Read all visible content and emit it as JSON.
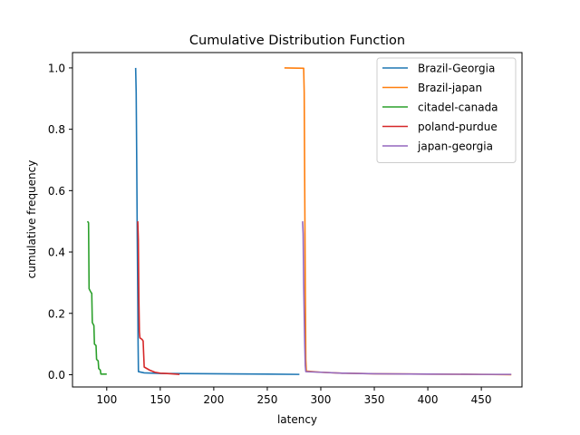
{
  "chart_data": {
    "type": "line",
    "title": "Cumulative Distribution Function",
    "xlabel": "latency",
    "ylabel": "cumulative frequency",
    "xlim": [
      68,
      488
    ],
    "ylim": [
      -0.04,
      1.05
    ],
    "xticks": [
      100,
      150,
      200,
      250,
      300,
      350,
      400,
      450
    ],
    "xtick_labels": [
      "100",
      "150",
      "200",
      "250",
      "300",
      "350",
      "400",
      "450"
    ],
    "yticks": [
      0.0,
      0.2,
      0.4,
      0.6,
      0.8,
      1.0
    ],
    "ytick_labels": [
      "0.0",
      "0.2",
      "0.4",
      "0.6",
      "0.8",
      "1.0"
    ],
    "grid": false,
    "legend_position": "top-right",
    "series": [
      {
        "name": "Brazil-Georgia",
        "color": "#1f77b4",
        "points": [
          [
            127,
            1.0
          ],
          [
            127.5,
            0.92
          ],
          [
            128,
            0.7
          ],
          [
            128.5,
            0.45
          ],
          [
            129,
            0.25
          ],
          [
            129.3,
            0.1
          ],
          [
            129.6,
            0.01
          ],
          [
            135,
            0.006
          ],
          [
            150,
            0.004
          ],
          [
            200,
            0.003
          ],
          [
            250,
            0.002
          ],
          [
            280,
            0.001
          ]
        ]
      },
      {
        "name": "Brazil-japan",
        "color": "#ff7f0e",
        "points": [
          [
            266,
            1.0
          ],
          [
            284,
            0.999
          ],
          [
            284.5,
            0.92
          ],
          [
            285,
            0.6
          ],
          [
            285.5,
            0.3
          ],
          [
            286,
            0.05
          ],
          [
            286.5,
            0.012
          ],
          [
            300,
            0.008
          ],
          [
            320,
            0.005
          ],
          [
            350,
            0.003
          ],
          [
            400,
            0.002
          ],
          [
            450,
            0.001
          ],
          [
            478,
            0.0
          ]
        ]
      },
      {
        "name": "citadel-canada",
        "color": "#2ca02c",
        "points": [
          [
            82,
            0.5
          ],
          [
            83,
            0.495
          ],
          [
            83.5,
            0.28
          ],
          [
            85,
            0.27
          ],
          [
            86,
            0.265
          ],
          [
            86.5,
            0.17
          ],
          [
            88,
            0.16
          ],
          [
            88.5,
            0.1
          ],
          [
            90,
            0.095
          ],
          [
            90.5,
            0.05
          ],
          [
            92,
            0.045
          ],
          [
            92.5,
            0.02
          ],
          [
            94,
            0.015
          ],
          [
            94.5,
            0.002
          ],
          [
            100,
            0.002
          ]
        ]
      },
      {
        "name": "poland-purdue",
        "color": "#d62728",
        "points": [
          [
            129,
            0.5
          ],
          [
            129.5,
            0.44
          ],
          [
            130,
            0.25
          ],
          [
            130.5,
            0.14
          ],
          [
            131,
            0.12
          ],
          [
            133,
            0.115
          ],
          [
            134,
            0.11
          ],
          [
            135,
            0.025
          ],
          [
            140,
            0.015
          ],
          [
            145,
            0.008
          ],
          [
            150,
            0.005
          ],
          [
            155,
            0.004
          ],
          [
            160,
            0.003
          ],
          [
            168,
            0.001
          ]
        ]
      },
      {
        "name": "japan-georgia",
        "color": "#9467bd",
        "points": [
          [
            283,
            0.5
          ],
          [
            283.5,
            0.46
          ],
          [
            284,
            0.3
          ],
          [
            284.5,
            0.2
          ],
          [
            285,
            0.1
          ],
          [
            285.5,
            0.03
          ],
          [
            286,
            0.01
          ],
          [
            300,
            0.008
          ],
          [
            320,
            0.005
          ],
          [
            350,
            0.003
          ],
          [
            400,
            0.002
          ],
          [
            450,
            0.001
          ],
          [
            478,
            0.001
          ]
        ]
      }
    ]
  }
}
